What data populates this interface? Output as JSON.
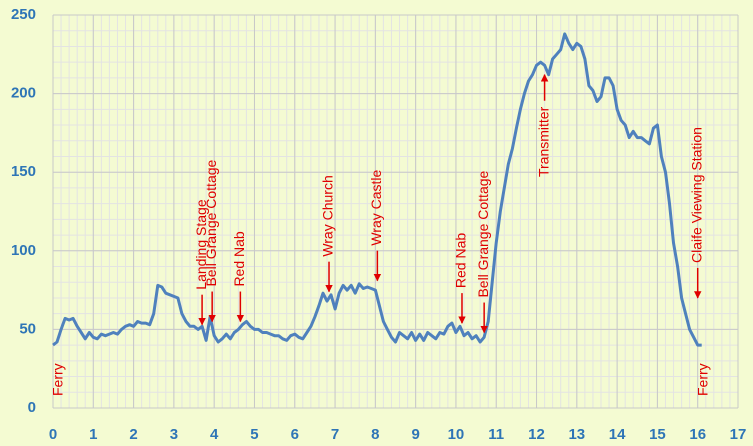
{
  "chart_data": {
    "type": "line",
    "color": "#4f81bd",
    "grid": true,
    "x": [
      0,
      0.1,
      0.2,
      0.3,
      0.4,
      0.5,
      0.6,
      0.7,
      0.8,
      0.9,
      1.0,
      1.1,
      1.2,
      1.3,
      1.4,
      1.5,
      1.6,
      1.7,
      1.8,
      1.9,
      2.0,
      2.1,
      2.2,
      2.3,
      2.4,
      2.5,
      2.6,
      2.7,
      2.8,
      2.9,
      3.0,
      3.1,
      3.2,
      3.3,
      3.4,
      3.5,
      3.6,
      3.7,
      3.8,
      3.9,
      4.0,
      4.1,
      4.2,
      4.3,
      4.4,
      4.5,
      4.6,
      4.7,
      4.8,
      4.9,
      5.0,
      5.1,
      5.2,
      5.3,
      5.4,
      5.5,
      5.6,
      5.7,
      5.8,
      5.9,
      6.0,
      6.1,
      6.2,
      6.3,
      6.4,
      6.5,
      6.6,
      6.7,
      6.8,
      6.9,
      7.0,
      7.1,
      7.2,
      7.3,
      7.4,
      7.5,
      7.6,
      7.7,
      7.8,
      7.9,
      8.0,
      8.1,
      8.2,
      8.3,
      8.4,
      8.5,
      8.6,
      8.7,
      8.8,
      8.9,
      9.0,
      9.1,
      9.2,
      9.3,
      9.4,
      9.5,
      9.6,
      9.7,
      9.8,
      9.9,
      10.0,
      10.1,
      10.2,
      10.3,
      10.4,
      10.5,
      10.6,
      10.7,
      10.8,
      10.9,
      11.0,
      11.1,
      11.2,
      11.3,
      11.4,
      11.5,
      11.6,
      11.7,
      11.8,
      11.9,
      12.0,
      12.1,
      12.2,
      12.3,
      12.4,
      12.5,
      12.6,
      12.7,
      12.8,
      12.9,
      13.0,
      13.1,
      13.2,
      13.3,
      13.4,
      13.5,
      13.6,
      13.7,
      13.8,
      13.9,
      14.0,
      14.1,
      14.2,
      14.3,
      14.4,
      14.5,
      14.6,
      14.7,
      14.8,
      14.9,
      15.0,
      15.1,
      15.2,
      15.3,
      15.4,
      15.5,
      15.6,
      15.7,
      15.8,
      15.9,
      16.0,
      16.1
    ],
    "values": [
      40,
      42,
      50,
      57,
      56,
      57,
      52,
      48,
      44,
      48,
      45,
      44,
      47,
      46,
      47,
      48,
      47,
      50,
      52,
      53,
      52,
      55,
      54,
      54,
      53,
      60,
      78,
      77,
      73,
      72,
      71,
      70,
      60,
      55,
      52,
      52,
      50,
      52,
      43,
      58,
      46,
      42,
      44,
      47,
      44,
      48,
      50,
      53,
      55,
      52,
      50,
      50,
      48,
      48,
      47,
      46,
      46,
      44,
      43,
      46,
      47,
      45,
      44,
      48,
      52,
      58,
      65,
      73,
      68,
      72,
      63,
      73,
      78,
      75,
      78,
      73,
      79,
      76,
      77,
      76,
      75,
      65,
      55,
      50,
      45,
      42,
      48,
      46,
      44,
      48,
      43,
      47,
      43,
      48,
      46,
      44,
      48,
      47,
      52,
      54,
      48,
      52,
      46,
      48,
      44,
      46,
      42,
      45,
      55,
      80,
      105,
      125,
      140,
      155,
      165,
      178,
      190,
      200,
      208,
      212,
      218,
      220,
      218,
      212,
      222,
      225,
      228,
      238,
      232,
      228,
      232,
      230,
      222,
      205,
      202,
      195,
      198,
      210,
      210,
      205,
      190,
      183,
      180,
      172,
      176,
      172,
      172,
      170,
      168,
      178,
      180,
      160,
      150,
      130,
      105,
      90,
      70,
      60,
      50,
      45,
      40,
      40
    ],
    "xlim": [
      0,
      17
    ],
    "xticks": [
      0,
      1,
      2,
      3,
      4,
      5,
      6,
      7,
      8,
      9,
      10,
      11,
      12,
      13,
      14,
      15,
      16,
      17
    ],
    "ylim": [
      0,
      250
    ],
    "yticks": [
      0,
      50,
      100,
      150,
      200,
      250
    ],
    "annotations": [
      {
        "text": "Ferry",
        "x": 0.15
      },
      {
        "text": "Landing Stage",
        "x": 3.7,
        "y": 53
      },
      {
        "text": "Bell Grange Cottage",
        "x": 3.95,
        "y": 55
      },
      {
        "text": "Red Nab",
        "x": 4.65,
        "y": 55
      },
      {
        "text": "Wray Church",
        "x": 6.85,
        "y": 74
      },
      {
        "text": "Wray Castle",
        "x": 8.05,
        "y": 81
      },
      {
        "text": "Red Nab",
        "x": 10.15,
        "y": 54
      },
      {
        "text": "Bell Grange Cottage",
        "x": 10.7,
        "y": 48
      },
      {
        "text": "Transmitter",
        "x": 12.2,
        "y": 212
      },
      {
        "text": "Claife Viewing Station",
        "x": 16.0,
        "y": 70
      },
      {
        "text": "Ferry",
        "x": 16.15
      }
    ]
  }
}
